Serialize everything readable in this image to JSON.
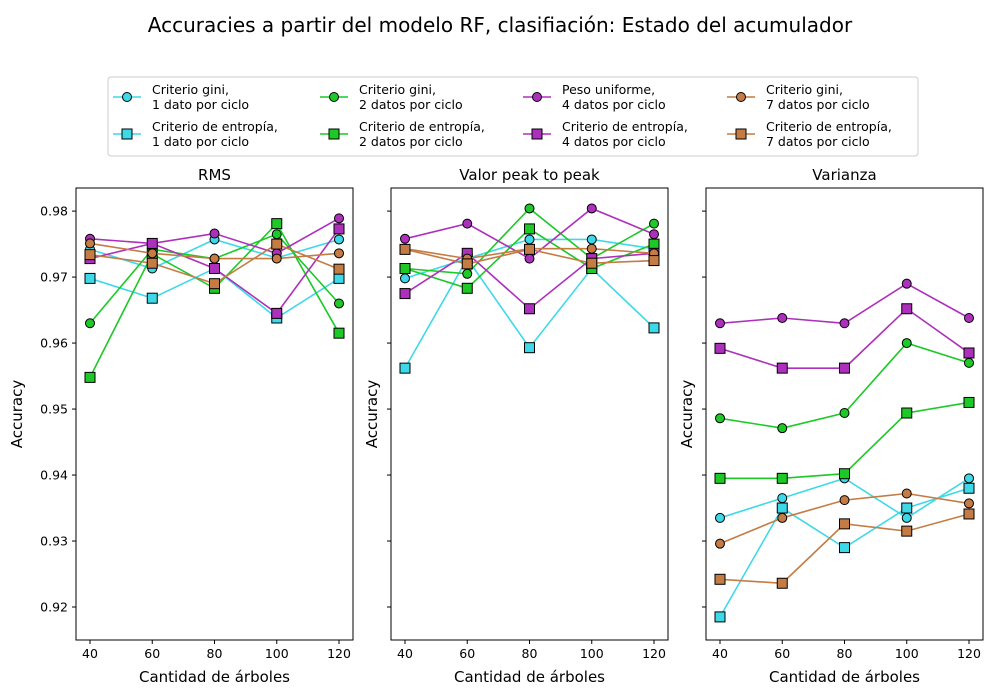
{
  "figure": {
    "title": "Accuracies a partir del modelo RF, clasifiación: Estado del acumulador"
  },
  "legend": {
    "placement": "top-center",
    "columns": 4,
    "entries": [
      {
        "line1": "Criterio gini,",
        "line2": "1 dato por ciclo",
        "color": "#3dd9e8",
        "marker": "circle"
      },
      {
        "line1": "Criterio de entropía,",
        "line2": "1 dato por ciclo",
        "color": "#3dd9e8",
        "marker": "square"
      },
      {
        "line1": "Criterio gini,",
        "line2": " 2 datos por ciclo",
        "color": "#1cc926",
        "marker": "circle"
      },
      {
        "line1": "Criterio de entropía,",
        "line2": "2 datos por ciclo",
        "color": "#1cc926",
        "marker": "square"
      },
      {
        "line1": "Peso uniforme,",
        "line2": "4 datos por ciclo",
        "color": "#ad30bc",
        "marker": "circle"
      },
      {
        "line1": "Criterio de entropía,",
        "line2": "4 datos por ciclo",
        "color": "#ad30bc",
        "marker": "square"
      },
      {
        "line1": "Criterio gini,",
        "line2": "7 datos por ciclo",
        "color": "#c47c44",
        "marker": "circle"
      },
      {
        "line1": "Criterio de entropía,",
        "line2": "7 datos por ciclo",
        "color": "#c47c44",
        "marker": "square"
      }
    ]
  },
  "chart_data": [
    {
      "type": "line",
      "title": "RMS",
      "xlabel": "Cantidad de árboles",
      "ylabel": "Accuracy",
      "x": [
        40,
        60,
        80,
        100,
        120
      ],
      "xticks": [
        "40",
        "60",
        "80",
        "100",
        "120"
      ],
      "ylim": [
        0.915,
        0.9835
      ],
      "yticks": [
        "0.92",
        "0.93",
        "0.94",
        "0.95",
        "0.96",
        "0.97",
        "0.98"
      ],
      "grid": false,
      "series": [
        {
          "name": "Criterio gini, 1 dato por ciclo",
          "values": [
            0.9742,
            0.9713,
            0.9757,
            0.9729,
            0.9757
          ]
        },
        {
          "name": "Criterio de entropía, 1 dato por ciclo",
          "values": [
            0.9698,
            0.9668,
            0.9713,
            0.9638,
            0.9698
          ]
        },
        {
          "name": "Criterio gini, 2 datos por ciclo",
          "values": [
            0.963,
            0.9742,
            0.9728,
            0.9765,
            0.966
          ]
        },
        {
          "name": "Criterio de entropía, 2 datos por ciclo",
          "values": [
            0.9548,
            0.9735,
            0.9683,
            0.9781,
            0.9615
          ]
        },
        {
          "name": "Peso uniforme, 4 datos por ciclo",
          "values": [
            0.9758,
            0.9751,
            0.9766,
            0.9736,
            0.9789
          ]
        },
        {
          "name": "Criterio de entropía, 4 datos por ciclo",
          "values": [
            0.9728,
            0.9751,
            0.9713,
            0.9645,
            0.9773
          ]
        },
        {
          "name": "Criterio gini, 7 datos por ciclo",
          "values": [
            0.9751,
            0.9736,
            0.9728,
            0.9728,
            0.9736
          ]
        },
        {
          "name": "Criterio de entropía, 7 datos por ciclo",
          "values": [
            0.9734,
            0.9721,
            0.969,
            0.975,
            0.9712
          ]
        }
      ]
    },
    {
      "type": "line",
      "title": "Valor peak to peak",
      "xlabel": "Cantidad de árboles",
      "ylabel": "Accuracy",
      "x": [
        40,
        60,
        80,
        100,
        120
      ],
      "xticks": [
        "40",
        "60",
        "80",
        "100",
        "120"
      ],
      "ylim": [
        0.915,
        0.9835
      ],
      "yticks": [],
      "grid": false,
      "series": [
        {
          "name": "Criterio gini, 1 dato por ciclo",
          "values": [
            0.9698,
            0.9728,
            0.9757,
            0.9757,
            0.9743
          ]
        },
        {
          "name": "Criterio de entropía, 1 dato por ciclo",
          "values": [
            0.9562,
            0.9728,
            0.9593,
            0.9713,
            0.9623
          ]
        },
        {
          "name": "Criterio gini, 2 datos por ciclo",
          "values": [
            0.9713,
            0.9705,
            0.9804,
            0.9728,
            0.9781
          ]
        },
        {
          "name": "Criterio de entropía, 2 datos por ciclo",
          "values": [
            0.9713,
            0.9683,
            0.9773,
            0.9713,
            0.975
          ]
        },
        {
          "name": "Peso uniforme, 4 datos por ciclo",
          "values": [
            0.9758,
            0.9781,
            0.9728,
            0.9804,
            0.9765
          ]
        },
        {
          "name": "Criterio de entropía, 4 datos por ciclo",
          "values": [
            0.9675,
            0.9736,
            0.9652,
            0.9728,
            0.9736
          ]
        },
        {
          "name": "Criterio gini, 7 datos por ciclo",
          "values": [
            0.9743,
            0.9728,
            0.9743,
            0.9743,
            0.9736
          ]
        },
        {
          "name": "Criterio de entropía, 7 datos por ciclo",
          "values": [
            0.9742,
            0.972,
            0.9742,
            0.9721,
            0.9725
          ]
        }
      ]
    },
    {
      "type": "line",
      "title": "Varianza",
      "xlabel": "Cantidad de árboles",
      "ylabel": "Accuracy",
      "x": [
        40,
        60,
        80,
        100,
        120
      ],
      "xticks": [
        "40",
        "60",
        "80",
        "100",
        "120"
      ],
      "ylim": [
        0.915,
        0.9835
      ],
      "yticks": [],
      "grid": false,
      "series": [
        {
          "name": "Criterio gini, 1 dato por ciclo",
          "values": [
            0.9335,
            0.9365,
            0.9395,
            0.9335,
            0.9395
          ]
        },
        {
          "name": "Criterio de entropía, 1 dato por ciclo",
          "values": [
            0.9185,
            0.935,
            0.929,
            0.935,
            0.938
          ]
        },
        {
          "name": "Criterio gini, 2 datos por ciclo",
          "values": [
            0.9486,
            0.9471,
            0.9494,
            0.96,
            0.957
          ]
        },
        {
          "name": "Criterio de entropía, 2 datos por ciclo",
          "values": [
            0.9395,
            0.9395,
            0.9402,
            0.9494,
            0.951
          ]
        },
        {
          "name": "Peso uniforme, 4 datos por ciclo",
          "values": [
            0.963,
            0.9638,
            0.963,
            0.969,
            0.9638
          ]
        },
        {
          "name": "Criterio de entropía, 4 datos por ciclo",
          "values": [
            0.9592,
            0.9562,
            0.9562,
            0.9652,
            0.9585
          ]
        },
        {
          "name": "Criterio gini, 7 datos por ciclo",
          "values": [
            0.9296,
            0.9335,
            0.9362,
            0.9372,
            0.9357
          ]
        },
        {
          "name": "Criterio de entropía, 7 datos por ciclo",
          "values": [
            0.9242,
            0.9236,
            0.9326,
            0.9315,
            0.9341
          ]
        }
      ]
    }
  ]
}
